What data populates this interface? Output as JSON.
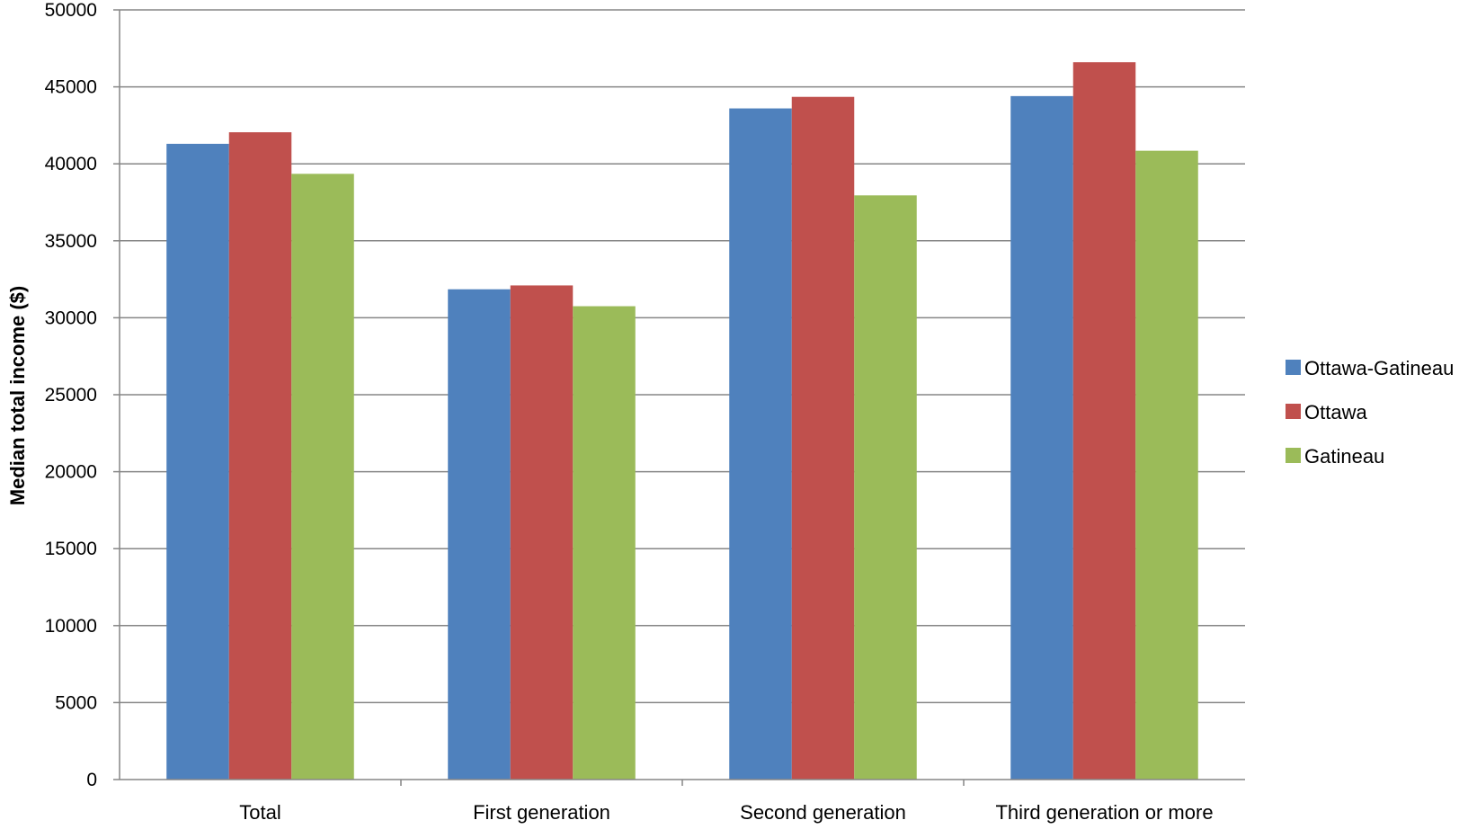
{
  "chart_data": {
    "type": "bar",
    "title": "",
    "xlabel": "",
    "ylabel": "Median total income ($)",
    "ylim": [
      0,
      50000
    ],
    "yticks": [
      0,
      5000,
      10000,
      15000,
      20000,
      25000,
      30000,
      35000,
      40000,
      45000,
      50000
    ],
    "grid": true,
    "legend_position": "right",
    "categories": [
      "Total",
      "First generation",
      "Second generation",
      "Third generation or more"
    ],
    "series": [
      {
        "name": "Ottawa-Gatineau",
        "color": "#4F81BD",
        "values": [
          41300,
          31850,
          43600,
          44400
        ]
      },
      {
        "name": "Ottawa",
        "color": "#C0504D",
        "values": [
          42050,
          32100,
          44350,
          46600
        ]
      },
      {
        "name": "Gatineau",
        "color": "#9BBB59",
        "values": [
          39350,
          30750,
          37950,
          40850
        ]
      }
    ]
  }
}
